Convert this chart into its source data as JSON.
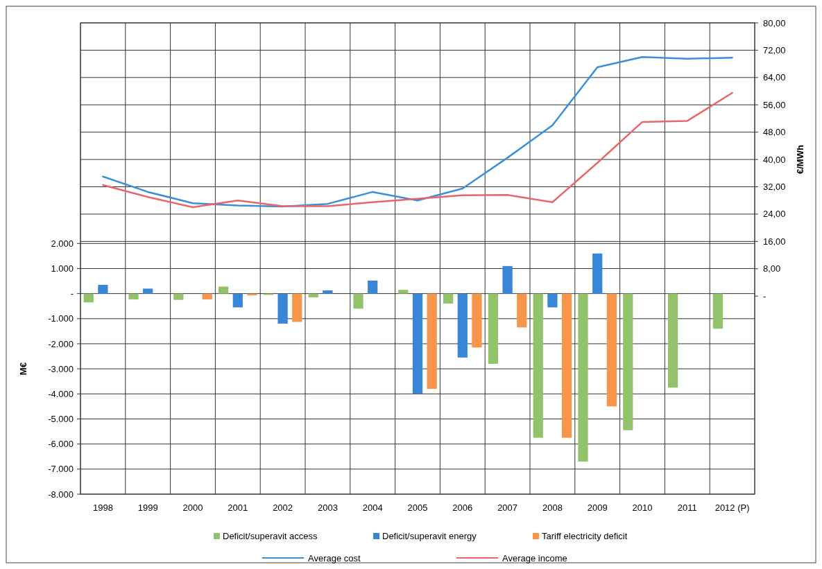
{
  "chart_data": {
    "type": "bar",
    "ylabel": "M€",
    "y2label": "€/MWh",
    "categories": [
      "1998",
      "1999",
      "2000",
      "2001",
      "2002",
      "2003",
      "2004",
      "2005",
      "2006",
      "2007",
      "2008",
      "2009",
      "2010",
      "2011",
      "2012 (P)"
    ],
    "series": [
      {
        "name": "Deficit/superavit access",
        "color": "#92c36a",
        "values": [
          -350,
          -230,
          -250,
          280,
          -50,
          -150,
          -600,
          150,
          -400,
          -2800,
          -5750,
          -6700,
          -5450,
          -3750,
          -1400
        ]
      },
      {
        "name": "Deficit/superavit energy",
        "color": "#3a86d6",
        "values": [
          350,
          200,
          null,
          -550,
          -1200,
          130,
          520,
          -4000,
          -2550,
          1100,
          -550,
          1600,
          null,
          null,
          null
        ]
      },
      {
        "name": "Tariff electricity deficit",
        "color": "#f7954a",
        "values": [
          null,
          null,
          -230,
          -70,
          -1130,
          null,
          null,
          -3800,
          -2150,
          -1350,
          -5750,
          -4500,
          null,
          null,
          null
        ]
      },
      {
        "name": "Average cost",
        "type": "line",
        "axis": "y2",
        "color": "#3a8fd9",
        "values": [
          35,
          30.5,
          27.2,
          26.5,
          26.2,
          27,
          30.5,
          28,
          31.5,
          40.5,
          50,
          67,
          70,
          69.5,
          69.8
        ]
      },
      {
        "name": "Average income",
        "type": "line",
        "axis": "y2",
        "color": "#e8666a",
        "values": [
          32.5,
          29,
          26,
          28,
          26.3,
          26.3,
          27.5,
          28.5,
          29.5,
          29.6,
          27.5,
          39,
          51,
          51.3,
          59.5
        ]
      }
    ],
    "ylim": [
      -8000,
      10800
    ],
    "yticks": [
      {
        "value": -8000,
        "label": "-8.000"
      },
      {
        "value": -7000,
        "label": "-7.000"
      },
      {
        "value": -6000,
        "label": "-6.000"
      },
      {
        "value": -5000,
        "label": "-5.000"
      },
      {
        "value": -4000,
        "label": "-4.000"
      },
      {
        "value": -3000,
        "label": "-3.000"
      },
      {
        "value": -2000,
        "label": "-2.000"
      },
      {
        "value": -1000,
        "label": "-1.000"
      },
      {
        "value": 0,
        "label": "-"
      },
      {
        "value": 1000,
        "label": "1.000"
      },
      {
        "value": 2000,
        "label": "2.000"
      }
    ],
    "y2lim": [
      -58,
      80
    ],
    "y2ticks": [
      {
        "value": 0,
        "label": "-"
      },
      {
        "value": 8,
        "label": "8,00"
      },
      {
        "value": 16,
        "label": "16,00"
      },
      {
        "value": 24,
        "label": "24,00"
      },
      {
        "value": 32,
        "label": "32,00"
      },
      {
        "value": 40,
        "label": "40,00"
      },
      {
        "value": 48,
        "label": "48,00"
      },
      {
        "value": 56,
        "label": "56,00"
      },
      {
        "value": 64,
        "label": "64,00"
      },
      {
        "value": 72,
        "label": "72,00"
      },
      {
        "value": 80,
        "label": "80,00"
      }
    ],
    "grid": true,
    "legend": "bottom"
  }
}
